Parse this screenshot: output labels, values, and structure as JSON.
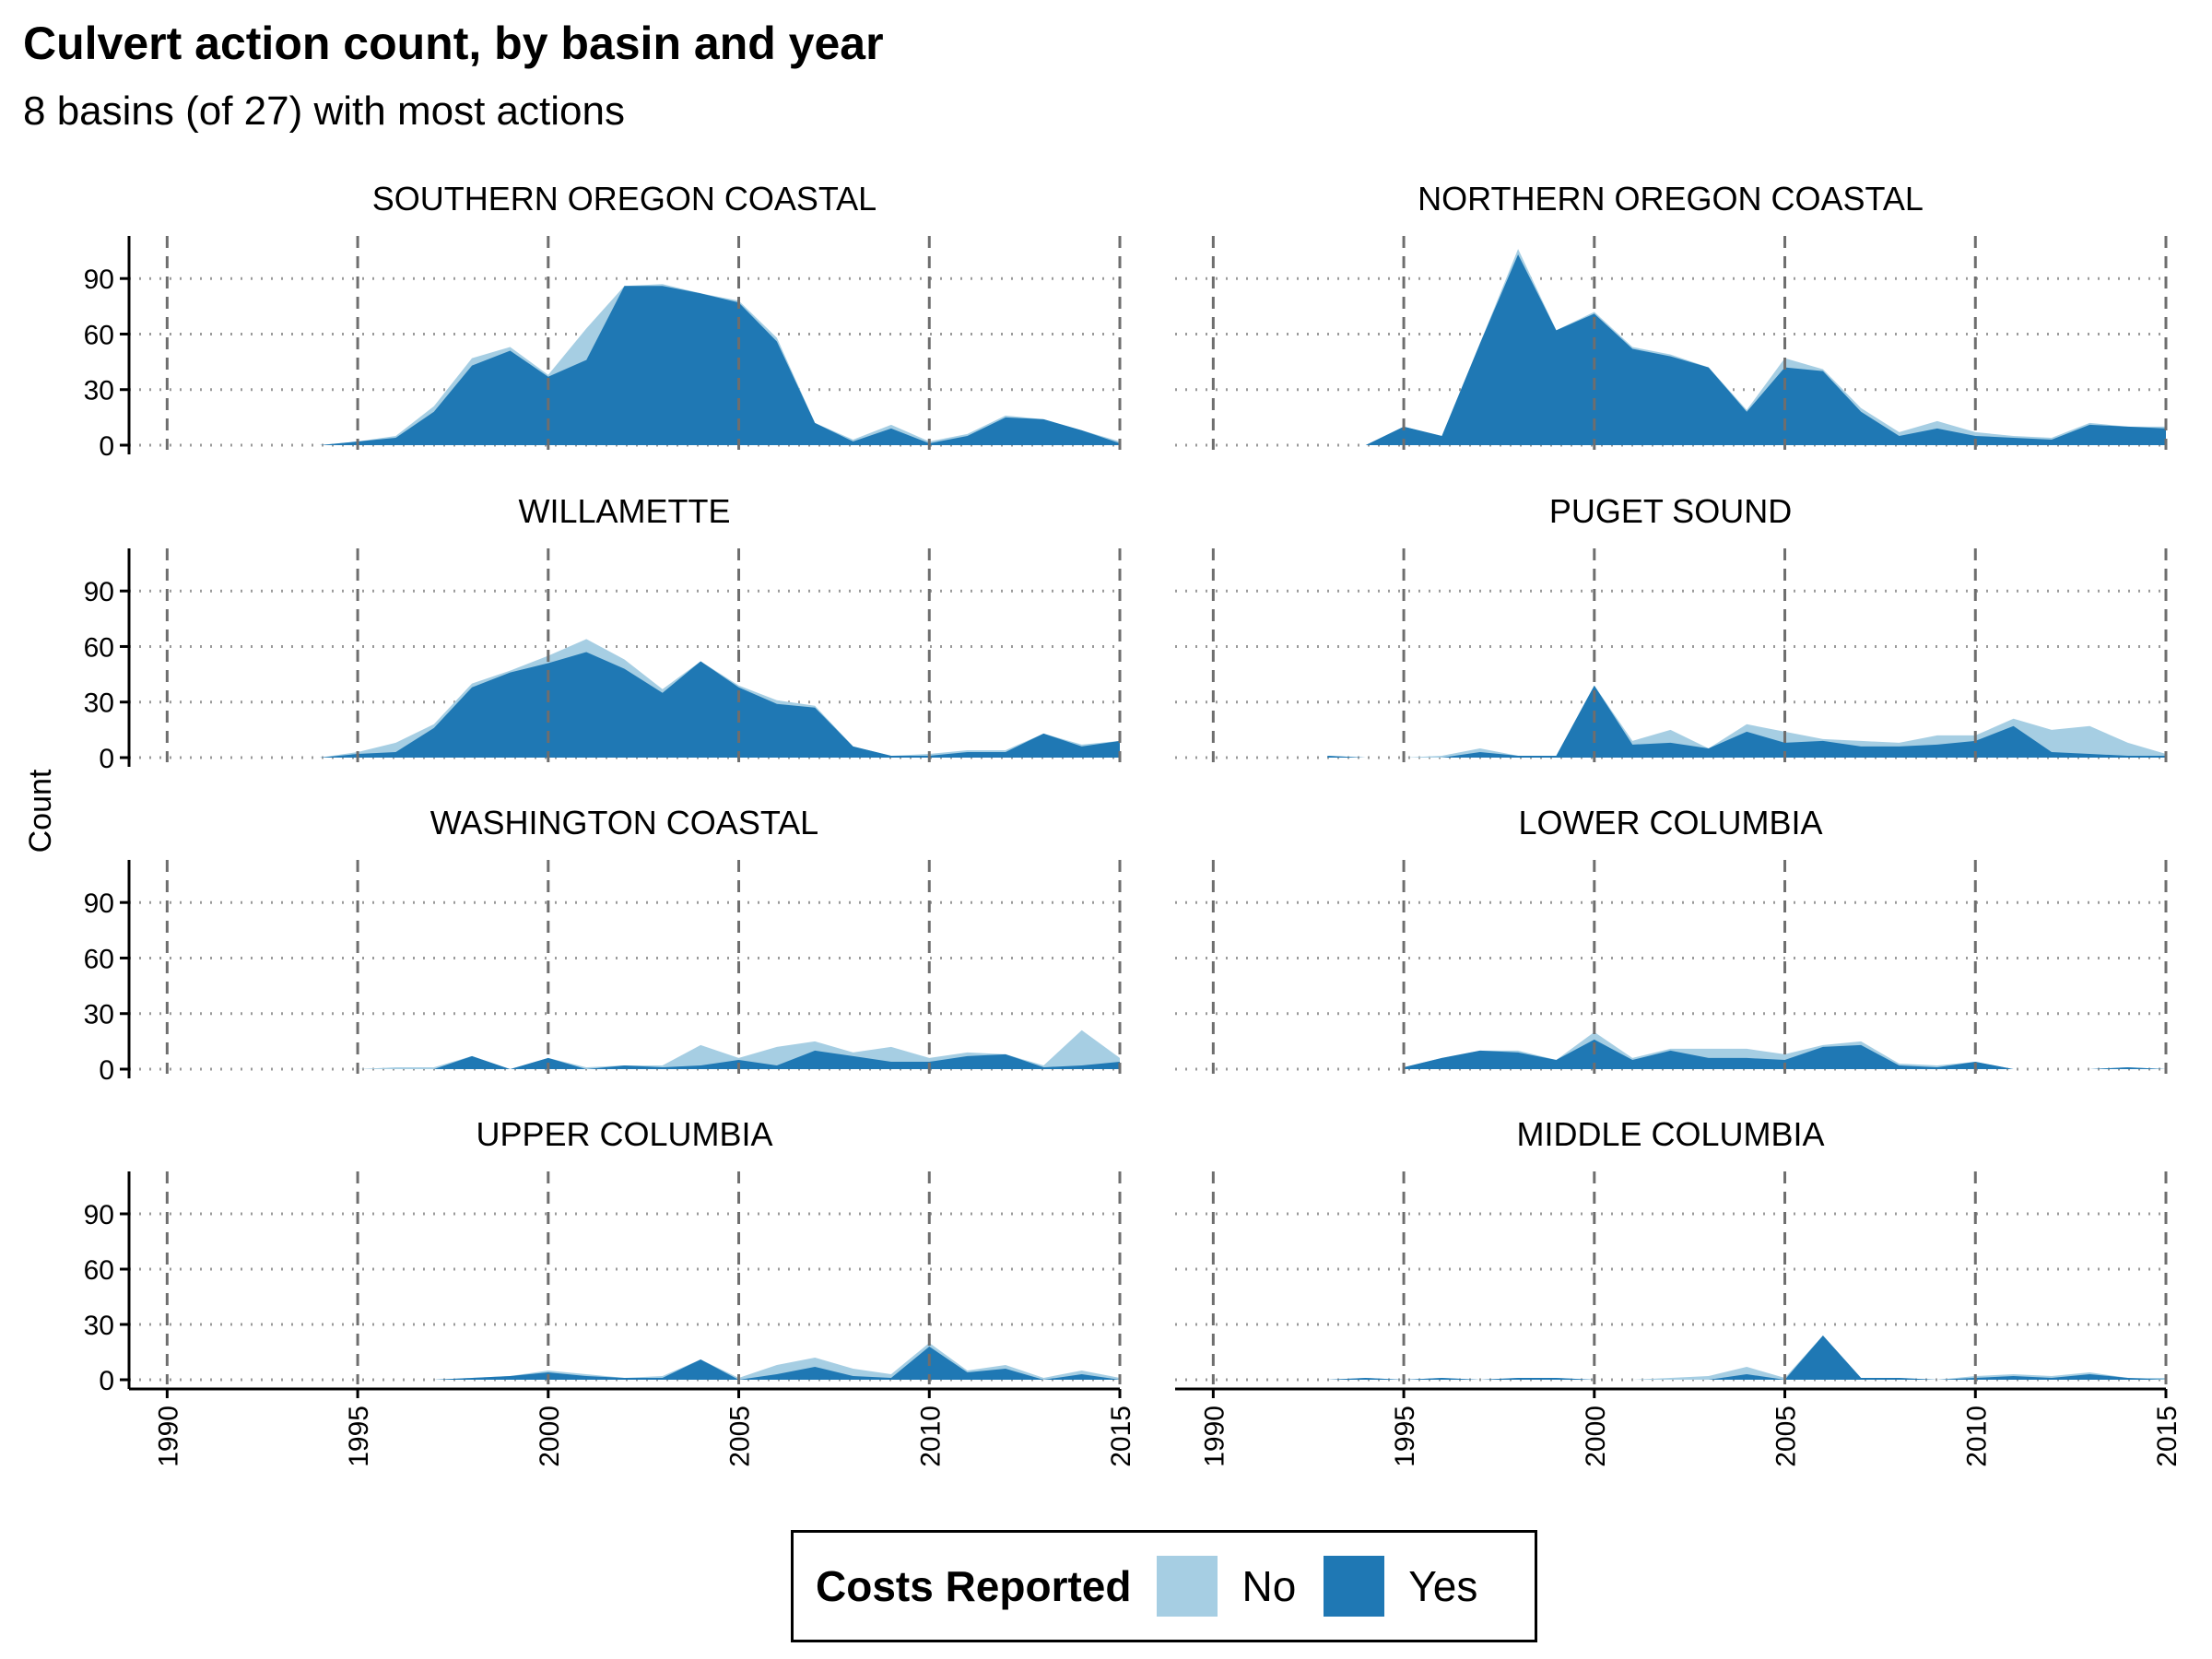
{
  "chart_data": {
    "type": "area",
    "title": "Culvert action count, by basin and year",
    "subtitle": "8 basins (of 27) with most actions",
    "ylabel": "Count",
    "xlabel": "",
    "xlim": [
      1989,
      2015
    ],
    "ylim": [
      0,
      112
    ],
    "x_ticks": [
      1990,
      1995,
      2000,
      2005,
      2010,
      2015
    ],
    "y_ticks": [
      0,
      30,
      60,
      90
    ],
    "vertical_dashed_lines_at": [
      1990,
      1995,
      2000,
      2005,
      2010,
      2015
    ],
    "horizontal_dotted_grid": true,
    "legend": {
      "title": "Costs Reported",
      "position": "bottom",
      "entries": [
        {
          "label": "No",
          "color": "#a6cee3"
        },
        {
          "label": "Yes",
          "color": "#1f78b4"
        }
      ]
    },
    "stacking": "Yes series drawn from zero; total (Yes + No) drawn behind it",
    "panels": [
      {
        "name": "SOUTHERN OREGON COASTAL",
        "x": [
          1994,
          1995,
          1996,
          1997,
          1998,
          1999,
          2000,
          2001,
          2002,
          2003,
          2004,
          2005,
          2006,
          2007,
          2008,
          2009,
          2010,
          2011,
          2012,
          2013,
          2014,
          2015
        ],
        "yes": [
          0,
          2,
          4,
          18,
          43,
          51,
          37,
          46,
          86,
          86,
          82,
          77,
          56,
          12,
          2,
          9,
          1,
          5,
          15,
          14,
          8,
          1
        ],
        "total": [
          0,
          2,
          5,
          21,
          47,
          53,
          38,
          63,
          86,
          87,
          82,
          78,
          58,
          12,
          3,
          11,
          2,
          6,
          16,
          14,
          8,
          2
        ]
      },
      {
        "name": "NORTHERN OREGON COASTAL",
        "x": [
          1994,
          1995,
          1996,
          1997,
          1998,
          1999,
          2000,
          2001,
          2002,
          2003,
          2004,
          2005,
          2006,
          2007,
          2008,
          2009,
          2010,
          2011,
          2012,
          2013,
          2014,
          2015
        ],
        "yes": [
          0,
          10,
          5,
          55,
          103,
          62,
          71,
          52,
          48,
          42,
          18,
          42,
          40,
          18,
          5,
          9,
          5,
          4,
          3,
          11,
          10,
          9
        ],
        "total": [
          0,
          10,
          5,
          55,
          106,
          62,
          72,
          53,
          49,
          42,
          19,
          47,
          41,
          20,
          7,
          13,
          7,
          5,
          4,
          12,
          10,
          10
        ]
      },
      {
        "name": "WILLAMETTE",
        "x": [
          1994,
          1995,
          1996,
          1997,
          1998,
          1999,
          2000,
          2001,
          2002,
          2003,
          2004,
          2005,
          2006,
          2007,
          2008,
          2009,
          2010,
          2011,
          2012,
          2013,
          2014,
          2015
        ],
        "yes": [
          0,
          2,
          3,
          16,
          38,
          46,
          51,
          57,
          48,
          35,
          52,
          38,
          29,
          27,
          6,
          1,
          1,
          3,
          3,
          13,
          6,
          9
        ],
        "total": [
          0,
          3,
          8,
          18,
          40,
          47,
          55,
          64,
          53,
          37,
          52,
          39,
          31,
          28,
          6,
          1,
          2,
          4,
          4,
          13,
          7,
          9
        ]
      },
      {
        "name": "PUGET SOUND",
        "x": [
          1993,
          1994,
          1995,
          1996,
          1997,
          1998,
          1999,
          2000,
          2001,
          2002,
          2003,
          2004,
          2005,
          2006,
          2007,
          2008,
          2009,
          2010,
          2011,
          2012,
          2013,
          2014,
          2015
        ],
        "yes": [
          1,
          0,
          0,
          0,
          3,
          1,
          1,
          39,
          7,
          8,
          5,
          14,
          8,
          9,
          6,
          6,
          7,
          9,
          17,
          3,
          2,
          1,
          1
        ],
        "total": [
          1,
          0,
          0,
          1,
          5,
          1,
          1,
          39,
          9,
          15,
          5,
          18,
          14,
          10,
          9,
          8,
          12,
          12,
          21,
          15,
          17,
          8,
          2
        ]
      },
      {
        "name": "WASHINGTON COASTAL",
        "x": [
          1995,
          1996,
          1997,
          1998,
          1999,
          2000,
          2001,
          2002,
          2003,
          2004,
          2005,
          2006,
          2007,
          2008,
          2009,
          2010,
          2011,
          2012,
          2013,
          2014,
          2015
        ],
        "yes": [
          0,
          0,
          0,
          7,
          0,
          6,
          0,
          2,
          1,
          2,
          5,
          2,
          10,
          7,
          4,
          4,
          7,
          8,
          1,
          2,
          4
        ],
        "total": [
          0,
          1,
          1,
          7,
          0,
          6,
          1,
          2,
          2,
          13,
          6,
          12,
          15,
          9,
          12,
          6,
          9,
          8,
          2,
          21,
          6
        ]
      },
      {
        "name": "LOWER COLUMBIA",
        "x": [
          1995,
          1996,
          1997,
          1998,
          1999,
          2000,
          2001,
          2002,
          2003,
          2004,
          2005,
          2006,
          2007,
          2008,
          2009,
          2010,
          2011,
          2012,
          2013,
          2014,
          2015
        ],
        "yes": [
          1,
          6,
          10,
          9,
          5,
          16,
          5,
          10,
          6,
          6,
          5,
          12,
          13,
          2,
          1,
          4,
          0,
          0,
          0,
          1,
          0
        ],
        "total": [
          1,
          6,
          10,
          10,
          5,
          20,
          6,
          11,
          11,
          11,
          8,
          13,
          15,
          3,
          2,
          4,
          0,
          0,
          0,
          1,
          0
        ]
      },
      {
        "name": "UPPER COLUMBIA",
        "x": [
          1997,
          1998,
          1999,
          2000,
          2001,
          2002,
          2003,
          2004,
          2005,
          2006,
          2007,
          2008,
          2009,
          2010,
          2011,
          2012,
          2013,
          2014,
          2015
        ],
        "yes": [
          0,
          1,
          2,
          4,
          2,
          1,
          1,
          11,
          0,
          3,
          7,
          2,
          1,
          18,
          4,
          6,
          0,
          3,
          0
        ],
        "total": [
          0,
          1,
          2,
          5,
          3,
          1,
          2,
          11,
          1,
          8,
          12,
          6,
          3,
          20,
          5,
          8,
          1,
          5,
          1
        ]
      },
      {
        "name": "MIDDLE COLUMBIA",
        "x": [
          1993,
          1994,
          1995,
          1996,
          1997,
          1998,
          1999,
          2000,
          2001,
          2002,
          2003,
          2004,
          2005,
          2006,
          2007,
          2008,
          2009,
          2010,
          2011,
          2012,
          2013,
          2014,
          2015
        ],
        "yes": [
          0,
          1,
          0,
          1,
          0,
          1,
          1,
          0,
          0,
          0,
          0,
          3,
          0,
          24,
          1,
          1,
          0,
          1,
          2,
          1,
          3,
          1,
          0
        ],
        "total": [
          0,
          1,
          0,
          1,
          0,
          1,
          1,
          0,
          0,
          1,
          2,
          7,
          1,
          24,
          1,
          1,
          0,
          2,
          3,
          2,
          4,
          1,
          1
        ]
      }
    ]
  }
}
